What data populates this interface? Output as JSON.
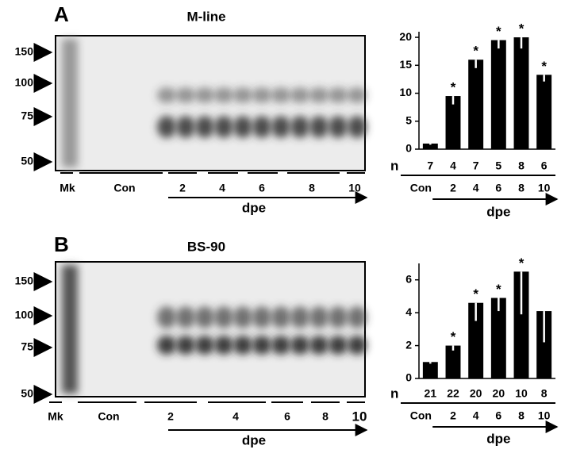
{
  "panels": [
    {
      "letter": "A",
      "title": "M-line",
      "markers": [
        150,
        100,
        75,
        50
      ],
      "lanes": [
        "Mk",
        "Con",
        "2",
        "4",
        "6",
        "8",
        "10"
      ],
      "axis_label": "dpe"
    },
    {
      "letter": "B",
      "title": "BS-90",
      "markers": [
        150,
        100,
        75,
        50
      ],
      "lanes": [
        "Mk",
        "Con",
        "2",
        "4",
        "6",
        "8",
        "10"
      ],
      "axis_label": "dpe"
    }
  ],
  "chart_data": [
    {
      "type": "bar",
      "categories": [
        "Con",
        "2",
        "4",
        "6",
        "8",
        "10"
      ],
      "values": [
        1,
        9.5,
        16,
        19.5,
        20,
        13.3
      ],
      "errors": [
        0.2,
        1.5,
        1.5,
        1.5,
        2,
        1.2
      ],
      "color": "#000000",
      "error_color": "#ffffff",
      "marker": "*",
      "significant": [
        false,
        true,
        true,
        true,
        true,
        true
      ],
      "n_label": "n",
      "n": [
        7,
        4,
        7,
        5,
        8,
        6
      ],
      "xlabel": "dpe",
      "ylim": [
        0,
        21
      ],
      "yticks": [
        0,
        5,
        10,
        15,
        20
      ]
    },
    {
      "type": "bar",
      "categories": [
        "Con",
        "2",
        "4",
        "6",
        "8",
        "10"
      ],
      "values": [
        1,
        2,
        4.6,
        4.9,
        6.5,
        4.1
      ],
      "errors": [
        0.1,
        0.3,
        1.1,
        0.8,
        2.6,
        1.9
      ],
      "color": "#000000",
      "error_color": "#ffffff",
      "marker": "*",
      "significant": [
        false,
        true,
        true,
        true,
        true,
        false
      ],
      "n_label": "n",
      "n": [
        21,
        22,
        20,
        20,
        10,
        8
      ],
      "xlabel": "dpe",
      "ylim": [
        0,
        7
      ],
      "yticks": [
        0,
        2,
        4,
        6
      ]
    }
  ]
}
